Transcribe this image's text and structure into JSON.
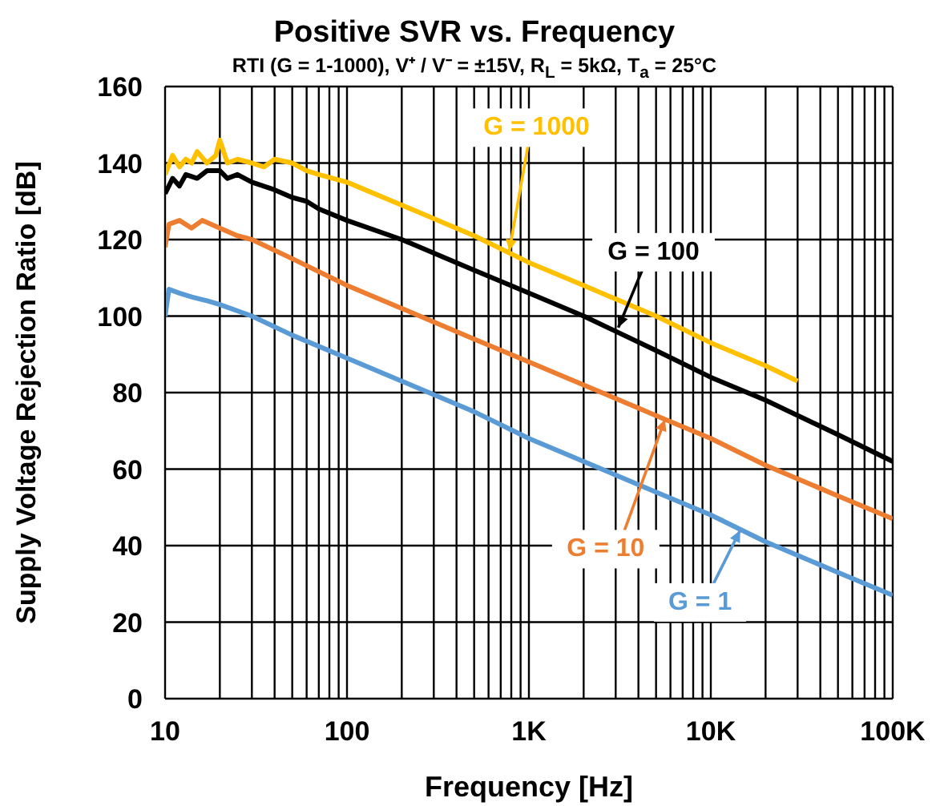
{
  "chart_data": {
    "type": "line",
    "title": "Positive SVR vs. Frequency",
    "subtitle": "RTI (G = 1-1000), V⁺ / V⁻ = ±15V, R$_{L}$ = 5kΩ, T$_{a}$ = 25°C",
    "xlabel": "Frequency [Hz]",
    "ylabel": "Supply Voltage Rejection Ratio [dB]",
    "log": "x",
    "grid": true,
    "marker": "none",
    "line_style": "solid",
    "xlim": [
      10,
      100000
    ],
    "ylim": [
      0,
      160
    ],
    "yticks": [
      0,
      20,
      40,
      60,
      80,
      100,
      120,
      140,
      160
    ],
    "xticks": [
      10,
      {
        "value": 20,
        "label": null
      },
      {
        "value": 30,
        "label": null
      },
      {
        "value": 40,
        "label": null
      },
      {
        "value": 50,
        "label": null
      },
      {
        "value": 60,
        "label": null
      },
      {
        "value": 70,
        "label": null
      },
      {
        "value": 80,
        "label": null
      },
      {
        "value": 90,
        "label": null
      },
      100,
      {
        "value": 200,
        "label": null
      },
      {
        "value": 300,
        "label": null
      },
      {
        "value": 400,
        "label": null
      },
      {
        "value": 500,
        "label": null
      },
      {
        "value": 600,
        "label": null
      },
      {
        "value": 700,
        "label": null
      },
      {
        "value": 800,
        "label": null
      },
      {
        "value": 900,
        "label": null
      },
      {
        "value": 1000,
        "label": "1K"
      },
      {
        "value": 2000,
        "label": null
      },
      {
        "value": 3000,
        "label": null
      },
      {
        "value": 4000,
        "label": null
      },
      {
        "value": 5000,
        "label": null
      },
      {
        "value": 6000,
        "label": null
      },
      {
        "value": 7000,
        "label": null
      },
      {
        "value": 8000,
        "label": null
      },
      {
        "value": 9000,
        "label": null
      },
      {
        "value": 10000,
        "label": "10K"
      },
      {
        "value": 20000,
        "label": null
      },
      {
        "value": 30000,
        "label": null
      },
      {
        "value": 40000,
        "label": null
      },
      {
        "value": 50000,
        "label": null
      },
      {
        "value": 60000,
        "label": null
      },
      {
        "value": 70000,
        "label": null
      },
      {
        "value": 80000,
        "label": null
      },
      {
        "value": 90000,
        "label": null
      },
      {
        "value": 100000,
        "label": "100K"
      }
    ],
    "series": [
      {
        "color": "#ffc000",
        "x": [
          10,
          11,
          12,
          13,
          14,
          15,
          17,
          19,
          20,
          22,
          25,
          30,
          35,
          40,
          50,
          60,
          70,
          100,
          200,
          500,
          1000,
          2000,
          5000,
          10000,
          20000,
          30000
        ],
        "values": [
          137,
          142,
          139,
          141,
          140,
          143,
          140,
          142,
          146,
          140,
          141,
          140,
          139,
          141,
          140,
          138,
          137,
          135,
          129,
          121,
          114,
          108,
          100,
          93,
          87,
          83
        ]
      },
      {
        "color": "#000000",
        "x": [
          10,
          11,
          12,
          13,
          15,
          17,
          20,
          22,
          25,
          30,
          40,
          50,
          60,
          70,
          100,
          200,
          500,
          1000,
          2000,
          5000,
          10000,
          20000,
          50000,
          100000
        ],
        "values": [
          132,
          136,
          134,
          137,
          136,
          138,
          138,
          136,
          137,
          135,
          133,
          131,
          130,
          128,
          125,
          120,
          112,
          106,
          100,
          91,
          84,
          78,
          69,
          62
        ]
      },
      {
        "color": "#ed7d31",
        "x": [
          10,
          10.5,
          12,
          14,
          16,
          20,
          25,
          30,
          50,
          100,
          200,
          500,
          1000,
          2000,
          5000,
          10000,
          20000,
          50000,
          100000
        ],
        "values": [
          118,
          124,
          125,
          123,
          125,
          123,
          121,
          120,
          115,
          108,
          102,
          94,
          88,
          82,
          74,
          68,
          61,
          53,
          47
        ]
      },
      {
        "color": "#5b9bd5",
        "x": [
          10,
          10.5,
          12,
          14,
          17,
          20,
          30,
          50,
          100,
          200,
          500,
          1000,
          2000,
          5000,
          10000,
          20000,
          50000,
          100000
        ],
        "values": [
          100,
          107,
          106,
          105,
          104,
          103,
          100,
          95,
          89,
          83,
          75,
          68,
          62,
          54,
          48,
          41,
          33,
          27
        ]
      }
    ],
    "annotations": [
      {
        "text": "G = 1000",
        "x": 780,
        "y": 117
      },
      {
        "text": "G = 100",
        "x": 3100,
        "y": 97
      },
      {
        "text": "G = 10",
        "x": 5600,
        "y": 73
      },
      {
        "text": "G = 1",
        "x": 14500,
        "y": 44
      }
    ]
  }
}
